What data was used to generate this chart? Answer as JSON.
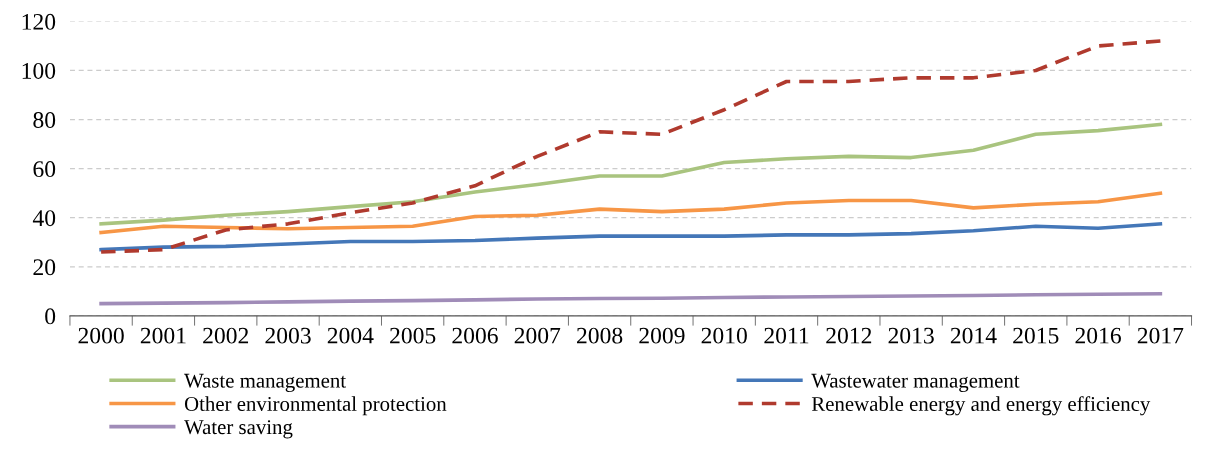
{
  "chart_data": {
    "type": "line",
    "categories": [
      "2000",
      "2001",
      "2002",
      "2003",
      "2004",
      "2005",
      "2006",
      "2007",
      "2008",
      "2009",
      "2010",
      "2011",
      "2012",
      "2013",
      "2014",
      "2015",
      "2016",
      "2017"
    ],
    "series": [
      {
        "name": "Waste management",
        "color": "#a9c47f",
        "values": [
          37.5,
          39,
          41,
          42.5,
          44.5,
          46.5,
          50.5,
          53.5,
          57,
          57,
          62.5,
          64,
          65,
          64.5,
          67.5,
          74,
          75.5,
          78
        ]
      },
      {
        "name": "Wastewater management",
        "color": "#4477b8",
        "values": [
          27,
          28,
          28.3,
          29.3,
          30.3,
          30.3,
          30.7,
          31.7,
          32.5,
          32.5,
          32.5,
          33,
          33,
          33.5,
          34.7,
          36.5,
          35.7,
          37.5
        ]
      },
      {
        "name": "Other environmental protection",
        "color": "#f79646",
        "values": [
          34,
          36.5,
          36,
          35.5,
          36,
          36.5,
          40.5,
          41,
          43.5,
          42.5,
          43.5,
          46,
          47,
          47,
          44,
          45.5,
          46.5,
          50
        ]
      },
      {
        "name": "Renewable energy and energy efficiency",
        "color": "#b03a2e",
        "line_style": "dashed",
        "values": [
          26,
          27,
          35,
          37.5,
          42,
          46,
          53,
          65,
          75,
          74,
          84,
          95.5,
          95.5,
          97,
          97,
          100,
          110,
          112
        ]
      },
      {
        "name": "Water saving",
        "color": "#a08cb8",
        "values": [
          5,
          5.2,
          5.4,
          5.7,
          6,
          6.2,
          6.5,
          6.9,
          7.1,
          7.2,
          7.5,
          7.7,
          7.9,
          8.1,
          8.3,
          8.6,
          8.8,
          9
        ]
      }
    ],
    "ylim": [
      0,
      120
    ],
    "yticks": [
      0,
      20,
      40,
      60,
      80,
      100,
      120
    ],
    "grid": "y",
    "legend": "bottom",
    "marker": "none",
    "line_style": "solid"
  }
}
